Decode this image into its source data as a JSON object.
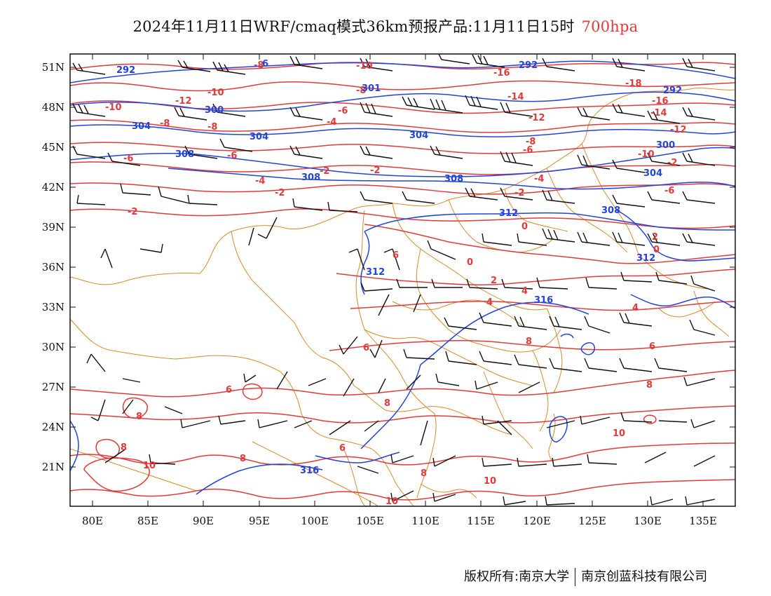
{
  "title": {
    "main": "2024年11月11日WRF/cmaq模式36km预报产品:11月11日15时",
    "level": "700hpa"
  },
  "axes": {
    "lat_ticks": [
      "51N",
      "48N",
      "45N",
      "42N",
      "39N",
      "36N",
      "33N",
      "30N",
      "27N",
      "24N",
      "21N"
    ],
    "lon_ticks": [
      "80E",
      "85E",
      "90E",
      "95E",
      "100E",
      "105E",
      "110E",
      "115E",
      "120E",
      "125E",
      "130E",
      "135E"
    ]
  },
  "contours": {
    "temperature_color": "#e23a3a",
    "height_color": "#2244dd",
    "border_color": "#d98a2b",
    "temperature_labels": [
      "-8",
      "-10",
      "-10",
      "-12",
      "-10",
      "-8",
      "-6",
      "-4",
      "-6",
      "-8",
      "-2",
      "-4",
      "-2",
      "-2",
      "-2",
      "-6",
      "-16",
      "-14",
      "-12",
      "-18",
      "-16",
      "-14",
      "-12",
      "-8",
      "-6",
      "-4",
      "-2",
      "-10",
      "-8",
      "-6",
      "0",
      "0",
      "2",
      "0",
      "2",
      "4",
      "4",
      "6",
      "8",
      "6",
      "8",
      "10",
      "8",
      "10",
      "8",
      "10",
      "8",
      "10",
      "6",
      "8",
      "6",
      "6",
      "8",
      "4",
      "-2"
    ],
    "height_labels": [
      "292",
      "300",
      "304",
      "304",
      "308",
      "308",
      "304",
      "308",
      "312",
      "312",
      "316",
      "316",
      "292",
      "300",
      "304",
      "308",
      "312",
      "301",
      "6"
    ]
  },
  "copyright": {
    "owner1": "版权所有:南京大学",
    "owner2": "南京创蓝科技有限公司"
  }
}
